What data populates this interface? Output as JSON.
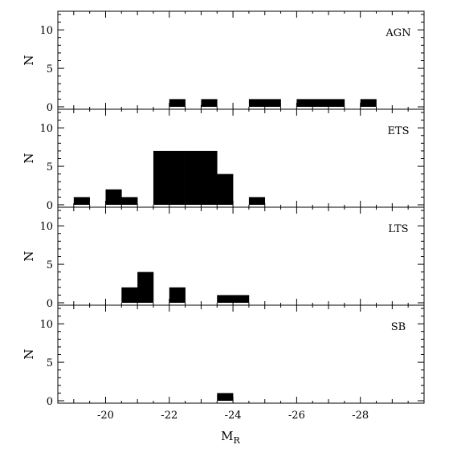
{
  "chart_data": [
    {
      "type": "bar",
      "title": "AGN",
      "ylabel": "N",
      "xlabel": "",
      "bin_width": 0.5,
      "xlim": [
        -18.5,
        -30.0
      ],
      "ylim": [
        0,
        12
      ],
      "yticks": [
        0,
        5,
        10
      ],
      "bars": [
        {
          "x0": -22.0,
          "x1": -22.5,
          "n": 1
        },
        {
          "x0": -23.0,
          "x1": -23.5,
          "n": 1
        },
        {
          "x0": -24.5,
          "x1": -25.0,
          "n": 1
        },
        {
          "x0": -25.0,
          "x1": -25.5,
          "n": 1
        },
        {
          "x0": -26.0,
          "x1": -26.5,
          "n": 1
        },
        {
          "x0": -26.5,
          "x1": -27.0,
          "n": 1
        },
        {
          "x0": -27.0,
          "x1": -27.5,
          "n": 1
        },
        {
          "x0": -28.0,
          "x1": -28.5,
          "n": 1
        }
      ]
    },
    {
      "type": "bar",
      "title": "ETS",
      "ylabel": "N",
      "xlabel": "",
      "bin_width": 0.5,
      "xlim": [
        -18.5,
        -30.0
      ],
      "ylim": [
        0,
        12
      ],
      "yticks": [
        0,
        5,
        10
      ],
      "bars": [
        {
          "x0": -19.0,
          "x1": -19.5,
          "n": 1
        },
        {
          "x0": -20.0,
          "x1": -20.5,
          "n": 2
        },
        {
          "x0": -20.5,
          "x1": -21.0,
          "n": 1
        },
        {
          "x0": -21.5,
          "x1": -22.0,
          "n": 7
        },
        {
          "x0": -22.0,
          "x1": -22.5,
          "n": 7
        },
        {
          "x0": -22.5,
          "x1": -23.0,
          "n": 7
        },
        {
          "x0": -23.0,
          "x1": -23.5,
          "n": 7
        },
        {
          "x0": -23.5,
          "x1": -24.0,
          "n": 4
        },
        {
          "x0": -24.5,
          "x1": -25.0,
          "n": 1
        }
      ]
    },
    {
      "type": "bar",
      "title": "LTS",
      "ylabel": "N",
      "xlabel": "",
      "bin_width": 0.5,
      "xlim": [
        -18.5,
        -30.0
      ],
      "ylim": [
        0,
        12
      ],
      "yticks": [
        0,
        5,
        10
      ],
      "bars": [
        {
          "x0": -20.5,
          "x1": -21.0,
          "n": 2
        },
        {
          "x0": -21.0,
          "x1": -21.5,
          "n": 4
        },
        {
          "x0": -22.0,
          "x1": -22.5,
          "n": 2
        },
        {
          "x0": -23.5,
          "x1": -24.0,
          "n": 1
        },
        {
          "x0": -24.0,
          "x1": -24.5,
          "n": 1
        }
      ]
    },
    {
      "type": "bar",
      "title": "SB",
      "ylabel": "N",
      "xlabel": "M",
      "xlabel_sub": "R",
      "bin_width": 0.5,
      "xlim": [
        -18.5,
        -30.0
      ],
      "ylim": [
        0,
        12
      ],
      "yticks": [
        0,
        5,
        10
      ],
      "xticks": [
        -20,
        -22,
        -24,
        -26,
        -28
      ],
      "bars": [
        {
          "x0": -23.5,
          "x1": -24.0,
          "n": 1
        }
      ]
    }
  ]
}
